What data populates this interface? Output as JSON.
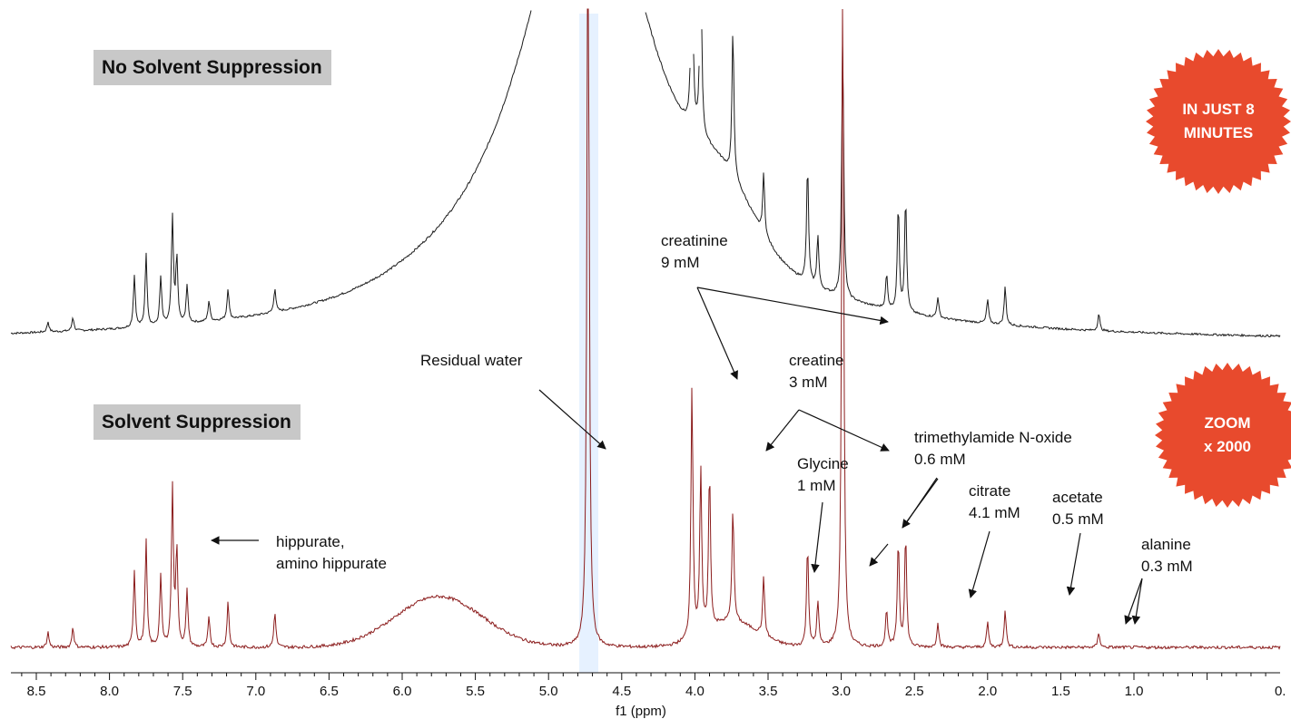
{
  "chart_data": {
    "type": "line",
    "xlabel": "f1 (ppm)",
    "xlim": [
      8.85,
      0.0
    ],
    "x_reversed": true,
    "tick_labels": [
      "8.5",
      "8.0",
      "7.5",
      "7.0",
      "6.5",
      "6.0",
      "5.5",
      "5.0",
      "4.5",
      "4.0",
      "3.5",
      "3.0",
      "2.5",
      "2.0",
      "1.5",
      "1.0",
      "0."
    ],
    "tick_values": [
      8.5,
      8.0,
      7.5,
      7.0,
      6.5,
      6.0,
      5.5,
      5.0,
      4.5,
      4.0,
      3.5,
      3.0,
      2.5,
      2.0,
      1.5,
      1.0,
      0.0
    ],
    "highlight_region_ppm": [
      4.66,
      4.79
    ],
    "series": [
      {
        "name": "No Solvent Suppression",
        "color": "#1a1a1a",
        "peaks": [
          {
            "ppm": 8.42,
            "height": 0.06
          },
          {
            "ppm": 8.25,
            "height": 0.08
          },
          {
            "ppm": 7.83,
            "height": 0.3
          },
          {
            "ppm": 7.75,
            "height": 0.42
          },
          {
            "ppm": 7.65,
            "height": 0.28
          },
          {
            "ppm": 7.57,
            "height": 0.62
          },
          {
            "ppm": 7.54,
            "height": 0.38
          },
          {
            "ppm": 7.47,
            "height": 0.22
          },
          {
            "ppm": 7.32,
            "height": 0.12
          },
          {
            "ppm": 7.19,
            "height": 0.18
          },
          {
            "ppm": 6.87,
            "height": 0.14
          },
          {
            "ppm": 4.02,
            "height": 1.2
          },
          {
            "ppm": 3.96,
            "height": 1.1
          },
          {
            "ppm": 3.74,
            "height": 0.85
          },
          {
            "ppm": 3.53,
            "height": 0.35
          },
          {
            "ppm": 3.23,
            "height": 0.68
          },
          {
            "ppm": 3.16,
            "height": 0.3
          },
          {
            "ppm": 2.99,
            "height": 1.5
          },
          {
            "ppm": 2.69,
            "height": 0.2
          },
          {
            "ppm": 2.61,
            "height": 0.62
          },
          {
            "ppm": 2.56,
            "height": 0.66
          },
          {
            "ppm": 2.34,
            "height": 0.12
          },
          {
            "ppm": 2.0,
            "height": 0.14
          },
          {
            "ppm": 1.88,
            "height": 0.22
          },
          {
            "ppm": 1.24,
            "height": 0.1
          }
        ]
      },
      {
        "name": "Solvent Suppression",
        "color": "#8b1c1c",
        "peaks": [
          {
            "ppm": 8.42,
            "height": 0.06
          },
          {
            "ppm": 8.25,
            "height": 0.08
          },
          {
            "ppm": 7.83,
            "height": 0.3
          },
          {
            "ppm": 7.75,
            "height": 0.42
          },
          {
            "ppm": 7.65,
            "height": 0.28
          },
          {
            "ppm": 7.57,
            "height": 0.62
          },
          {
            "ppm": 7.54,
            "height": 0.38
          },
          {
            "ppm": 7.47,
            "height": 0.22
          },
          {
            "ppm": 7.32,
            "height": 0.12
          },
          {
            "ppm": 7.19,
            "height": 0.18
          },
          {
            "ppm": 6.87,
            "height": 0.14
          },
          {
            "ppm": 4.73,
            "height": 3.5
          },
          {
            "ppm": 4.02,
            "height": 1.0
          },
          {
            "ppm": 3.96,
            "height": 0.64
          },
          {
            "ppm": 3.9,
            "height": 0.62
          },
          {
            "ppm": 3.74,
            "height": 0.45
          },
          {
            "ppm": 3.53,
            "height": 0.23
          },
          {
            "ppm": 3.23,
            "height": 0.4
          },
          {
            "ppm": 3.16,
            "height": 0.18
          },
          {
            "ppm": 2.99,
            "height": 2.8
          },
          {
            "ppm": 2.69,
            "height": 0.15
          },
          {
            "ppm": 2.61,
            "height": 0.42
          },
          {
            "ppm": 2.56,
            "height": 0.44
          },
          {
            "ppm": 2.34,
            "height": 0.1
          },
          {
            "ppm": 2.0,
            "height": 0.1
          },
          {
            "ppm": 1.88,
            "height": 0.15
          },
          {
            "ppm": 1.24,
            "height": 0.06
          }
        ]
      }
    ]
  },
  "labels": {
    "no_suppression": "No Solvent Suppression",
    "suppression": "Solvent Suppression",
    "badge_top_line1": "IN JUST 8",
    "badge_top_line2": "MINUTES",
    "badge_bottom_line1": "ZOOM",
    "badge_bottom_line2": "x 2000",
    "badge_color": "#e84a2d"
  },
  "annotations": {
    "creatinine": "creatinine\n9 mM",
    "residual_water": "Residual water",
    "creatine": "creatine\n3 mM",
    "tmao": "trimethylamide N-oxide\n0.6 mM",
    "glycine": "Glycine\n1 mM",
    "citrate": "citrate\n4.1 mM",
    "acetate": "acetate\n0.5 mM",
    "alanine": "alanine\n0.3 mM",
    "hippurate": "hippurate,\namino hippurate"
  }
}
